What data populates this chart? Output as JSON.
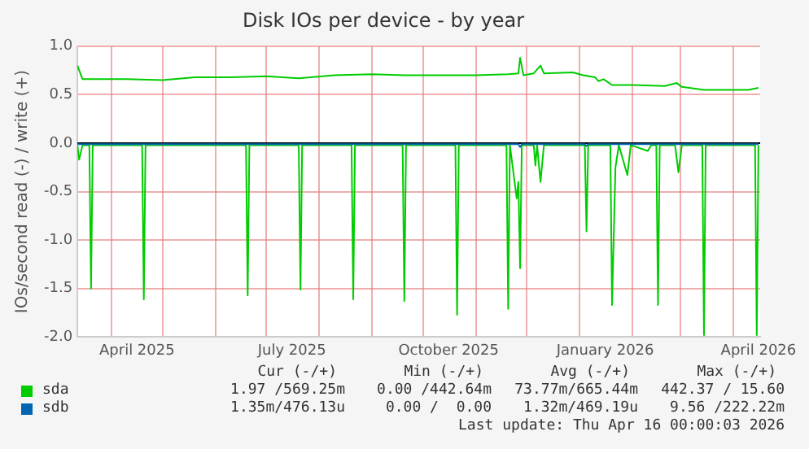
{
  "chart_data": {
    "type": "line",
    "title": "Disk IOs per device - by year",
    "ylabel": "IOs/second read (-) / write (+)",
    "xlim": [
      "2025-03-12",
      "2026-04-17"
    ],
    "xticks": [
      {
        "value": "2025-04-01",
        "label": null
      },
      {
        "value": "2025-04-16",
        "label": "April 2025"
      },
      {
        "value": "2025-05-01",
        "label": null
      },
      {
        "value": "2025-06-01",
        "label": null
      },
      {
        "value": "2025-07-01",
        "label": null
      },
      {
        "value": "2025-07-16",
        "label": "July 2025"
      },
      {
        "value": "2025-08-01",
        "label": null
      },
      {
        "value": "2025-09-01",
        "label": null
      },
      {
        "value": "2025-10-01",
        "label": null
      },
      {
        "value": "2025-10-16",
        "label": "October 2025"
      },
      {
        "value": "2025-11-01",
        "label": null
      },
      {
        "value": "2025-12-01",
        "label": null
      },
      {
        "value": "2026-01-01",
        "label": null
      },
      {
        "value": "2026-01-16",
        "label": "January 2026"
      },
      {
        "value": "2026-02-01",
        "label": null
      },
      {
        "value": "2026-03-01",
        "label": null
      },
      {
        "value": "2026-04-01",
        "label": null
      },
      {
        "value": "2026-04-16",
        "label": "April 2026"
      }
    ],
    "ylim": [
      -2,
      1
    ],
    "yticks": [
      {
        "value": -2,
        "label": "-2.0"
      },
      {
        "value": -1.5,
        "label": "-1.5"
      },
      {
        "value": -1,
        "label": "-1.0"
      },
      {
        "value": -0.5,
        "label": "-0.5"
      },
      {
        "value": 0,
        "label": "0.0"
      },
      {
        "value": 0.5,
        "label": "0.5"
      },
      {
        "value": 1,
        "label": "1.0"
      }
    ],
    "grid": true,
    "legend": "bottom",
    "marker": "none",
    "line_style": "solid",
    "ref_lines": [
      {
        "axis": "y",
        "value": 0,
        "color": "#000000"
      }
    ],
    "series": [
      {
        "name": "sda",
        "color": "#00cc00",
        "x": [
          "2025-03-12",
          "2025-03-15",
          "2025-04-10",
          "2025-05-01",
          "2025-05-20",
          "2025-06-10",
          "2025-07-01",
          "2025-07-20",
          "2025-08-10",
          "2025-09-01",
          "2025-09-20",
          "2025-10-10",
          "2025-11-01",
          "2025-11-20",
          "2025-11-26",
          "2025-11-27",
          "2025-11-29",
          "2025-12-05",
          "2025-12-09",
          "2025-12-11",
          "2025-12-28",
          "2026-01-03",
          "2026-01-10",
          "2026-01-12",
          "2026-01-15",
          "2026-01-20",
          "2026-02-01",
          "2026-02-20",
          "2026-02-27",
          "2026-03-02",
          "2026-03-15",
          "2026-04-10",
          "2026-04-16"
        ],
        "values": [
          0.8,
          0.66,
          0.66,
          0.65,
          0.68,
          0.68,
          0.69,
          0.67,
          0.7,
          0.71,
          0.7,
          0.7,
          0.7,
          0.71,
          0.72,
          0.88,
          0.7,
          0.72,
          0.8,
          0.72,
          0.73,
          0.7,
          0.68,
          0.64,
          0.66,
          0.6,
          0.6,
          0.59,
          0.62,
          0.58,
          0.55,
          0.55,
          0.57
        ]
      },
      {
        "color": "#00cc00",
        "x": [
          "2025-03-12",
          "2025-03-13",
          "2025-03-15",
          "2025-03-19",
          "2025-03-20",
          "2025-03-21",
          "2025-04-19",
          "2025-04-20",
          "2025-04-21",
          "2025-06-19",
          "2025-06-20",
          "2025-06-21",
          "2025-07-20",
          "2025-07-21",
          "2025-07-22",
          "2025-08-20",
          "2025-08-21",
          "2025-08-22",
          "2025-09-19",
          "2025-09-20",
          "2025-09-21",
          "2025-10-20",
          "2025-10-21",
          "2025-10-22",
          "2025-11-19",
          "2025-11-20",
          "2025-11-21",
          "2025-11-25",
          "2025-11-26",
          "2025-11-27",
          "2025-11-28",
          "2025-11-29",
          "2025-12-05",
          "2025-12-06",
          "2025-12-07",
          "2025-12-09",
          "2025-12-11",
          "2026-01-04",
          "2026-01-05",
          "2026-01-06",
          "2026-01-19",
          "2026-01-20",
          "2026-01-22",
          "2026-01-24",
          "2026-01-29",
          "2026-01-31",
          "2026-02-10",
          "2026-02-12",
          "2026-02-15",
          "2026-02-16",
          "2026-02-17",
          "2026-02-26",
          "2026-02-28",
          "2026-03-02",
          "2026-03-14",
          "2026-03-15",
          "2026-03-16",
          "2026-04-14",
          "2026-04-15",
          "2026-04-16"
        ],
        "values": [
          -0.02,
          -0.17,
          -0.02,
          -0.02,
          -1.5,
          -0.02,
          -0.02,
          -1.61,
          -0.02,
          -0.02,
          -1.57,
          -0.02,
          -0.02,
          -1.51,
          -0.02,
          -0.02,
          -1.61,
          -0.02,
          -0.02,
          -1.63,
          -0.02,
          -0.02,
          -1.77,
          -0.02,
          -0.02,
          -1.71,
          -0.02,
          -0.57,
          -0.4,
          -1.29,
          -0.02,
          -0.02,
          -0.02,
          -0.23,
          -0.02,
          -0.4,
          -0.02,
          -0.02,
          -0.91,
          -0.02,
          -0.02,
          -1.67,
          -0.25,
          -0.02,
          -0.33,
          -0.02,
          -0.08,
          -0.02,
          -0.02,
          -1.67,
          -0.02,
          -0.02,
          -0.3,
          -0.02,
          -0.02,
          -1.98,
          -0.02,
          -0.02,
          -1.98,
          -0.02
        ]
      },
      {
        "name": "sdb",
        "color": "#0066b3",
        "x": [
          "2025-03-12",
          "2025-11-26",
          "2025-11-27",
          "2025-11-28",
          "2026-01-04",
          "2026-01-05",
          "2026-01-06",
          "2026-04-16"
        ],
        "values": [
          -0.01,
          -0.01,
          -0.04,
          -0.01,
          -0.01,
          -0.03,
          -0.01,
          -0.01
        ]
      }
    ],
    "annotations": [
      "Cur (-/+)",
      "Min (-/+)",
      "Avg (-/+)",
      "Max (-/+)",
      "1.97 /569.25m",
      "0.00 /442.64m",
      "73.77m/665.44m",
      "442.37 / 15.60",
      "1.35m/476.13u",
      "0.00 /  0.00",
      "1.32m/469.19u",
      "9.56 /222.22m",
      "Last update: Thu Apr 16 00:00:03 2026"
    ]
  }
}
